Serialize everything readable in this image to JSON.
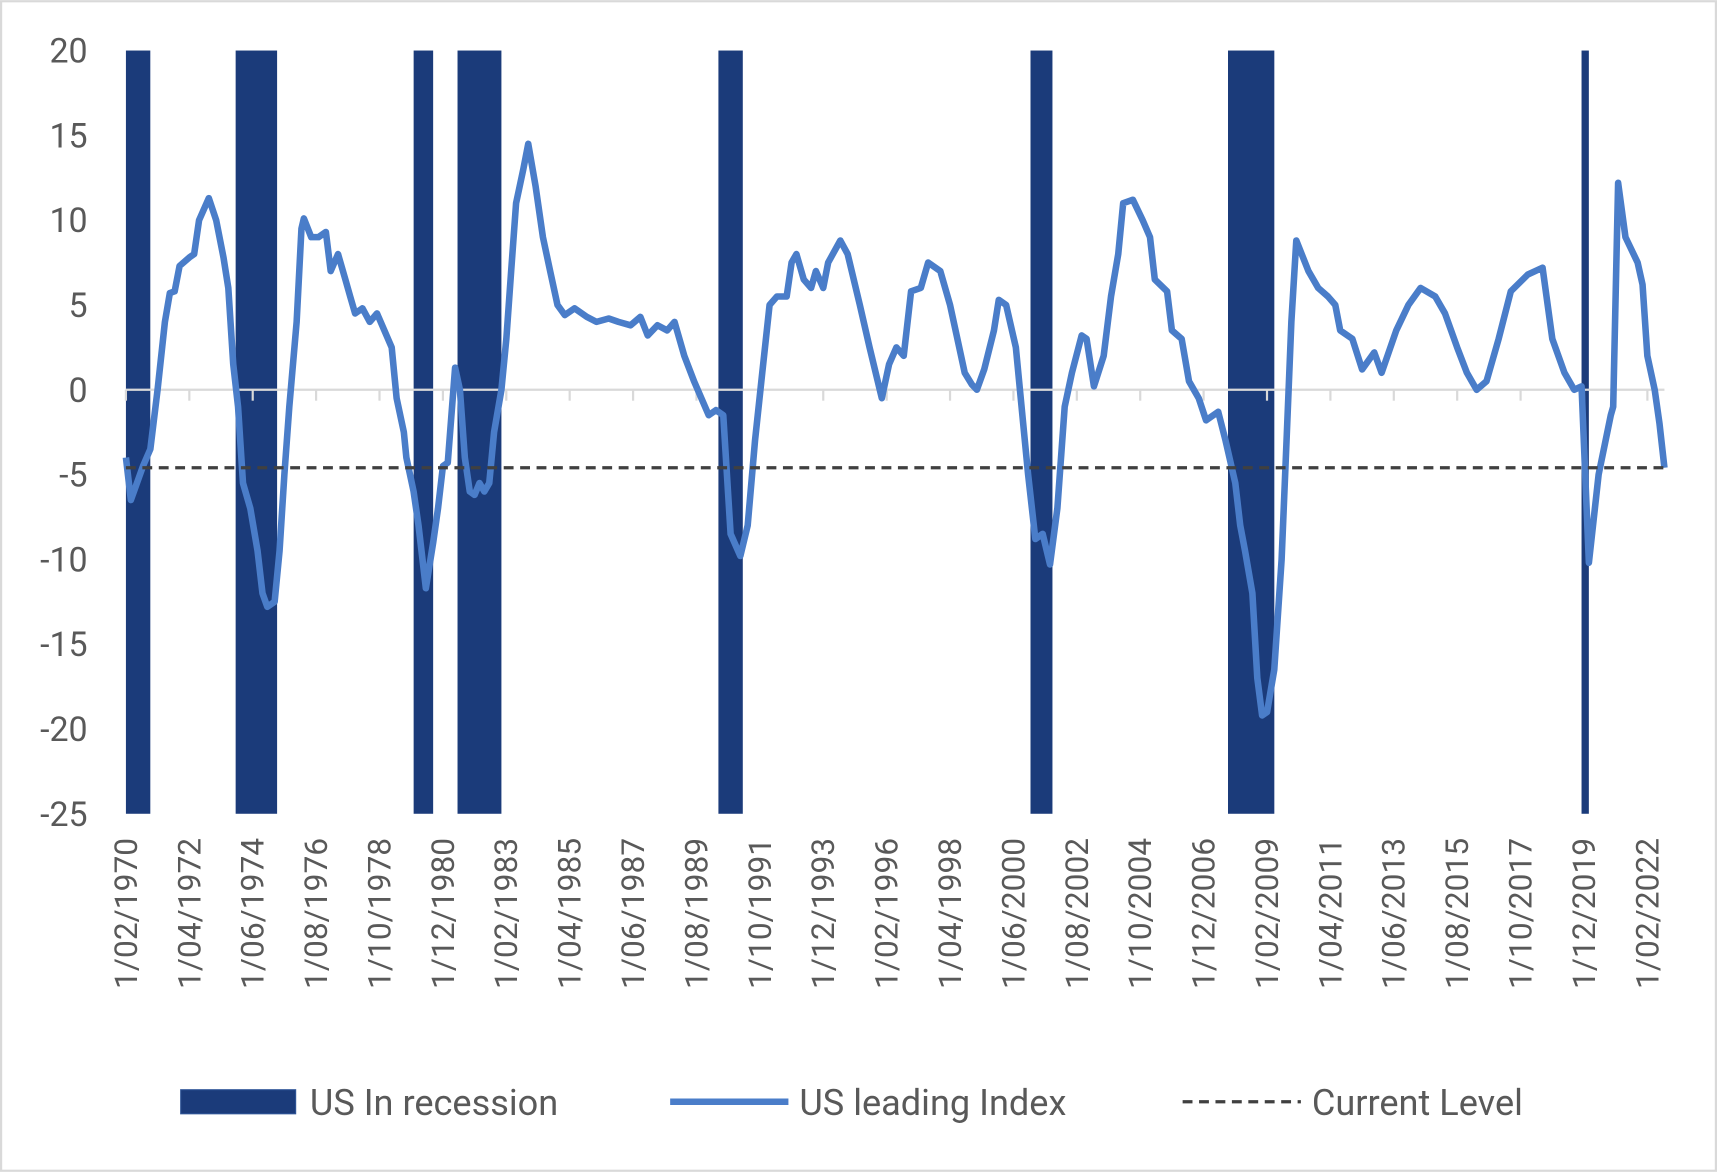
{
  "chart_data": {
    "type": "line",
    "x": [
      "1/02/1970",
      "1/04/1970",
      "1/09/1970",
      "1/12/1970",
      "1/03/1971",
      "1/06/1971",
      "1/08/1971",
      "1/10/1971",
      "1/12/1971",
      "1/04/1972",
      "1/06/1972",
      "1/08/1972",
      "1/12/1972",
      "1/03/1973",
      "1/06/1973",
      "1/08/1973",
      "1/10/1973",
      "1/12/1973",
      "1/02/1974",
      "1/05/1974",
      "1/08/1974",
      "1/10/1974",
      "1/12/1974",
      "1/03/1975",
      "1/05/1975",
      "1/07/1975",
      "1/09/1975",
      "1/12/1975",
      "1/02/1976",
      "1/03/1976",
      "1/06/1976",
      "1/09/1976",
      "1/12/1976",
      "1/02/1977",
      "1/05/1977",
      "1/08/1977",
      "1/10/1977",
      "1/12/1977",
      "1/03/1978",
      "1/06/1978",
      "1/09/1978",
      "1/12/1978",
      "1/03/1979",
      "1/05/1979",
      "1/08/1979",
      "1/09/1979",
      "1/12/1979",
      "1/02/1980",
      "1/05/1980",
      "1/08/1980",
      "1/10/1980",
      "1/12/1980",
      "1/02/1981",
      "1/05/1981",
      "1/07/1981",
      "1/09/1981",
      "1/11/1981",
      "1/01/1982",
      "1/03/1982",
      "1/05/1982",
      "1/07/1982",
      "1/09/1982",
      "1/12/1982",
      "1/02/1983",
      "1/04/1983",
      "1/06/1983",
      "1/09/1983",
      "1/11/1983",
      "1/02/1984",
      "1/05/1984",
      "1/08/1984",
      "1/11/1984",
      "1/02/1985",
      "1/06/1985",
      "1/11/1985",
      "1/03/1986",
      "1/08/1986",
      "1/12/1986",
      "1/05/1987",
      "1/09/1987",
      "1/12/1987",
      "1/04/1988",
      "1/08/1988",
      "1/11/1988",
      "1/03/1989",
      "1/07/1989",
      "1/10/1989",
      "1/01/1990",
      "1/04/1990",
      "1/07/1990",
      "1/10/1990",
      "1/02/1991",
      "1/05/1991",
      "1/08/1991",
      "1/11/1991",
      "1/02/1992",
      "1/05/1992",
      "1/09/1992",
      "1/11/1992",
      "1/01/1993",
      "1/04/1993",
      "1/07/1993",
      "1/09/1993",
      "1/12/1993",
      "1/02/1994",
      "1/07/1994",
      "1/10/1994",
      "1/03/1995",
      "1/07/1995",
      "1/12/1995",
      "1/03/1996",
      "1/06/1996",
      "1/09/1996",
      "1/12/1996",
      "1/04/1997",
      "1/07/1997",
      "1/12/1997",
      "1/04/1998",
      "1/07/1998",
      "1/10/1998",
      "1/01/1999",
      "1/03/1999",
      "1/06/1999",
      "1/10/1999",
      "1/12/1999",
      "1/03/2000",
      "1/07/2000",
      "1/10/2000",
      "1/12/2000",
      "1/03/2001",
      "1/06/2001",
      "1/09/2001",
      "1/12/2001",
      "1/03/2002",
      "1/06/2002",
      "1/10/2002",
      "1/12/2002",
      "1/03/2003",
      "1/07/2003",
      "1/10/2003",
      "1/01/2004",
      "1/03/2004",
      "1/07/2004",
      "1/11/2004",
      "1/02/2005",
      "1/04/2005",
      "1/09/2005",
      "1/11/2005",
      "1/03/2006",
      "1/06/2006",
      "1/10/2006",
      "1/01/2007",
      "1/06/2007",
      "1/09/2007",
      "1/01/2008",
      "1/03/2008",
      "1/05/2008",
      "1/08/2008",
      "1/10/2008",
      "1/12/2008",
      "1/02/2009",
      "1/05/2009",
      "1/08/2009",
      "1/10/2009",
      "1/12/2009",
      "1/02/2010",
      "1/07/2010",
      "1/11/2010",
      "1/03/2011",
      "1/06/2011",
      "1/08/2011",
      "1/01/2012",
      "1/05/2012",
      "1/10/2012",
      "1/01/2013",
      "1/07/2013",
      "1/12/2013",
      "1/05/2014",
      "1/11/2014",
      "1/03/2015",
      "1/08/2015",
      "1/12/2015",
      "1/04/2016",
      "1/08/2016",
      "1/01/2017",
      "1/06/2017",
      "1/01/2018",
      "1/07/2018",
      "1/11/2018",
      "1/04/2019",
      "1/08/2019",
      "1/11/2019",
      "1/02/2020",
      "1/06/2020",
      "1/11/2020",
      "1/12/2020",
      "1/02/2021",
      "1/05/2021",
      "1/10/2021",
      "1/12/2021",
      "1/02/2022",
      "1/05/2022",
      "1/07/2022",
      "1/09/2022"
    ],
    "series": [
      {
        "name": "US In recession",
        "color": "#1b3b7a",
        "kind": "recession",
        "periods": [
          {
            "start": "1/02/1970",
            "end": "1/12/1970"
          },
          {
            "start": "1/11/1973",
            "end": "1/04/1975"
          },
          {
            "start": "1/12/1979",
            "end": "1/08/1980"
          },
          {
            "start": "1/06/1981",
            "end": "1/12/1982"
          },
          {
            "start": "1/05/1990",
            "end": "1/03/1991"
          },
          {
            "start": "1/01/2001",
            "end": "1/10/2001"
          },
          {
            "start": "1/10/2007",
            "end": "1/05/2009"
          },
          {
            "start": "1/11/2019",
            "end": "1/02/2020"
          }
        ]
      },
      {
        "name": "US leading Index",
        "color": "#4a7dc9",
        "kind": "line",
        "values": [
          -4,
          -6.5,
          -4.5,
          -3.5,
          0,
          4,
          5.7,
          5.8,
          7.3,
          7.8,
          8,
          10,
          11.3,
          10,
          7.8,
          6,
          1.5,
          -1,
          -5.5,
          -7,
          -9.5,
          -12,
          -12.8,
          -12.5,
          -9.5,
          -5,
          -1,
          4,
          9.5,
          10.1,
          9,
          9,
          9.3,
          7,
          8,
          6.5,
          5.5,
          4.5,
          4.8,
          4,
          4.5,
          3.5,
          2.5,
          -0.5,
          -2.5,
          -4,
          -6,
          -8,
          -11.7,
          -9,
          -7,
          -4.5,
          -4.3,
          1.3,
          0,
          -4,
          -6,
          -6.2,
          -5.5,
          -6,
          -5.5,
          -2.5,
          0,
          3,
          7,
          11,
          13,
          14.5,
          12,
          9,
          7,
          5,
          4.4,
          4.8,
          4.3,
          4,
          4.2,
          4,
          3.8,
          4.3,
          3.2,
          3.8,
          3.5,
          4,
          2,
          0.5,
          -0.5,
          -1.5,
          -1.2,
          -1.5,
          -8.5,
          -9.8,
          -8,
          -3,
          1,
          5,
          5.5,
          5.5,
          7.5,
          8,
          6.5,
          6,
          7,
          6,
          7.5,
          8.8,
          8,
          5,
          2.5,
          -0.5,
          1.5,
          2.5,
          2,
          5.8,
          6,
          7.5,
          7,
          5,
          3,
          1,
          0.3,
          0,
          1.2,
          3.5,
          5.3,
          5,
          2.5,
          -2,
          -5,
          -8.8,
          -8.5,
          -10.3,
          -7,
          -1,
          1,
          3.2,
          3,
          0.2,
          2,
          5.5,
          8,
          11,
          11.2,
          10,
          9,
          6.5,
          5.8,
          3.5,
          3,
          0.5,
          -0.5,
          -1.8,
          -1.3,
          -3,
          -5.5,
          -8,
          -9.5,
          -12,
          -17,
          -19.2,
          -19,
          -16.5,
          -10,
          -3,
          4,
          8.8,
          7,
          6,
          5.5,
          5,
          3.5,
          3,
          1.2,
          2.2,
          1,
          3.5,
          5,
          6,
          5.5,
          4.5,
          2.5,
          1,
          0,
          0.5,
          3,
          5.8,
          6.8,
          7.2,
          3,
          1,
          0,
          0.2,
          -10.2,
          -5,
          -1.5,
          -1,
          12.2,
          9,
          7.5,
          6.2,
          2,
          0,
          -2,
          -4.6
        ]
      },
      {
        "name": "Current Level",
        "color": "#404040",
        "kind": "reference",
        "value": -4.6,
        "dashed": true
      }
    ],
    "xlim": [
      "1/02/1970",
      "1/09/2022"
    ],
    "xticks": [
      "1/02/1970",
      "1/04/1972",
      "1/06/1974",
      "1/08/1976",
      "1/10/1978",
      "1/12/1980",
      "1/02/1983",
      "1/04/1985",
      "1/06/1987",
      "1/08/1989",
      "1/10/1991",
      "1/12/1993",
      "1/02/1996",
      "1/04/1998",
      "1/06/2000",
      "1/08/2002",
      "1/10/2004",
      "1/12/2006",
      "1/02/2009",
      "1/04/2011",
      "1/06/2013",
      "1/08/2015",
      "1/10/2017",
      "1/12/2019",
      "1/02/2022"
    ],
    "ylim": [
      -25,
      20
    ],
    "yticks": [
      -25,
      -20,
      -15,
      -10,
      -5,
      0,
      5,
      10,
      15,
      20
    ],
    "grid": true,
    "legend": "bottom"
  }
}
